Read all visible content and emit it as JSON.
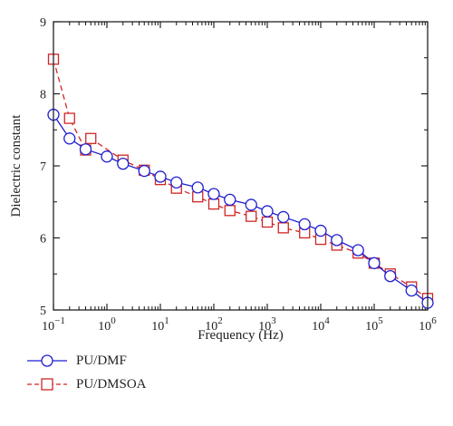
{
  "chart_data": {
    "type": "line",
    "title": "",
    "xlabel": "Frequency (Hz)",
    "ylabel": "Dielectric constant",
    "x_scale": "log",
    "xlim": [
      0.1,
      1000000
    ],
    "ylim": [
      5,
      9
    ],
    "x_ticks": [
      {
        "value": 0.1,
        "base": "10",
        "exp": "−1"
      },
      {
        "value": 1,
        "base": "10",
        "exp": "0"
      },
      {
        "value": 10,
        "base": "10",
        "exp": "1"
      },
      {
        "value": 100,
        "base": "10",
        "exp": "2"
      },
      {
        "value": 1000,
        "base": "10",
        "exp": "3"
      },
      {
        "value": 10000,
        "base": "10",
        "exp": "4"
      },
      {
        "value": 100000,
        "base": "10",
        "exp": "5"
      },
      {
        "value": 1000000,
        "base": "10",
        "exp": "6"
      }
    ],
    "y_ticks": [
      "5",
      "6",
      "7",
      "8",
      "9"
    ],
    "grid": false,
    "legend_position": "bottom-left, outside plot",
    "series": [
      {
        "name": "PU/DMF",
        "color": "#1f1fd0",
        "marker": "circle",
        "line_style": "solid",
        "x": [
          0.1,
          0.2,
          0.4,
          1,
          2,
          5,
          10,
          20,
          50,
          100,
          200,
          500,
          1000,
          2000,
          5000,
          10000,
          20000,
          50000,
          100000,
          200000,
          500000,
          1000000
        ],
        "y": [
          7.71,
          7.38,
          7.23,
          7.13,
          7.03,
          6.93,
          6.85,
          6.77,
          6.7,
          6.61,
          6.53,
          6.46,
          6.37,
          6.29,
          6.19,
          6.1,
          5.97,
          5.83,
          5.65,
          5.47,
          5.27,
          5.1
        ]
      },
      {
        "name": "PU/DMSOA",
        "color": "#d02525",
        "marker": "square",
        "line_style": "dashed",
        "x": [
          0.1,
          0.2,
          0.4,
          0.5,
          2,
          5,
          10,
          20,
          50,
          100,
          200,
          500,
          1000,
          2000,
          5000,
          10000,
          20000,
          50000,
          100000,
          200000,
          500000,
          1000000
        ],
        "y": [
          8.48,
          7.66,
          7.22,
          7.38,
          7.08,
          6.94,
          6.81,
          6.69,
          6.57,
          6.47,
          6.38,
          6.3,
          6.22,
          6.14,
          6.07,
          5.98,
          5.9,
          5.79,
          5.65,
          5.5,
          5.32,
          5.16
        ]
      }
    ]
  }
}
